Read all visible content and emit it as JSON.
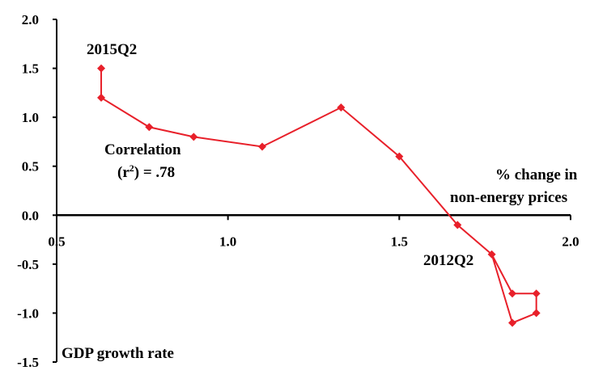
{
  "chart_data": {
    "type": "line",
    "xlabel": "% change in non-energy prices",
    "xlabel_lines": [
      "% change in",
      "non-energy prices"
    ],
    "ylabel": "GDP growth rate",
    "xlim": [
      0.5,
      2.0
    ],
    "ylim": [
      -1.5,
      2.0
    ],
    "x_ticks": [
      "0.5",
      "1.0",
      "1.5",
      "2.0"
    ],
    "y_ticks": [
      "2.0",
      "1.5",
      "1.0",
      "0.5",
      "0.0",
      "-0.5",
      "-1.0",
      "-1.5"
    ],
    "grid": false,
    "line_color": "#e8202a",
    "series": [
      {
        "points": [
          {
            "x": 0.63,
            "y": 1.5
          },
          {
            "x": 0.63,
            "y": 1.2
          },
          {
            "x": 0.77,
            "y": 0.9
          },
          {
            "x": 0.9,
            "y": 0.8
          },
          {
            "x": 1.1,
            "y": 0.7
          },
          {
            "x": 1.33,
            "y": 1.1
          },
          {
            "x": 1.5,
            "y": 0.6
          },
          {
            "x": 1.67,
            "y": -0.1
          },
          {
            "x": 1.77,
            "y": -0.4
          },
          {
            "x": 1.83,
            "y": -0.8
          },
          {
            "x": 1.9,
            "y": -0.8
          },
          {
            "x": 1.9,
            "y": -1.0
          },
          {
            "x": 1.83,
            "y": -1.1
          },
          {
            "x": 1.77,
            "y": -0.4
          }
        ]
      }
    ],
    "annotations": {
      "start_label": "2015Q2",
      "end_label": "2012Q2",
      "correlation_line1": "Correlation",
      "correlation_r": "(r",
      "correlation_sup": "2",
      "correlation_rest": ") = .78"
    }
  }
}
